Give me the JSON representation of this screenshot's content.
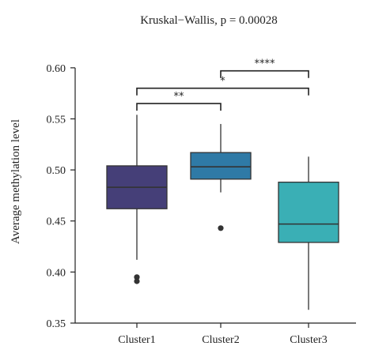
{
  "chart_data": {
    "type": "box",
    "title": "Kruskal−Wallis, p = 0.00028",
    "xlabel": "",
    "ylabel": "Average methylation level",
    "ylim": [
      0.35,
      0.62
    ],
    "yticks": [
      0.35,
      0.4,
      0.45,
      0.5,
      0.55,
      0.6
    ],
    "ytick_labels": [
      "0.35",
      "0.40",
      "0.45",
      "0.50",
      "0.55",
      "0.60"
    ],
    "grid": false,
    "categories": [
      "Cluster1",
      "Cluster2",
      "Cluster3"
    ],
    "boxes": [
      {
        "category": "Cluster1",
        "whisker_low": 0.412,
        "q1": 0.462,
        "median": 0.483,
        "q3": 0.504,
        "whisker_high": 0.554,
        "outliers": [
          0.395,
          0.391
        ],
        "color": "#453f78"
      },
      {
        "category": "Cluster2",
        "whisker_low": 0.478,
        "q1": 0.491,
        "median": 0.503,
        "q3": 0.517,
        "whisker_high": 0.545,
        "outliers": [
          0.443
        ],
        "color": "#2f7aa6"
      },
      {
        "category": "Cluster3",
        "whisker_low": 0.363,
        "q1": 0.429,
        "median": 0.447,
        "q3": 0.488,
        "whisker_high": 0.513,
        "outliers": [],
        "color": "#3aafb5"
      }
    ],
    "comparisons": [
      {
        "from": "Cluster1",
        "to": "Cluster2",
        "label": "**",
        "y": 0.565
      },
      {
        "from": "Cluster1",
        "to": "Cluster3",
        "label": "*",
        "y": 0.58
      },
      {
        "from": "Cluster2",
        "to": "Cluster3",
        "label": "****",
        "y": 0.597
      }
    ]
  }
}
